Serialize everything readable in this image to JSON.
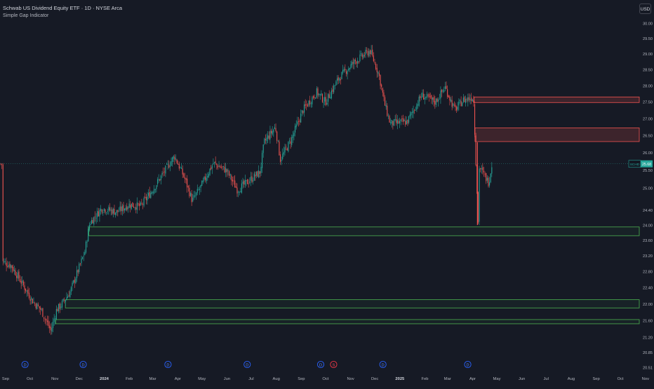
{
  "header": {
    "title": "Schwab US Dividend Equity ETF · 1D · NYSE Arca",
    "indicator": "Simple Gap Indicator",
    "currency": "USD"
  },
  "price_tag": {
    "symbol": "SCHD",
    "value": "25.68"
  },
  "colors": {
    "background": "#161a25",
    "up": "#26a69a",
    "down": "#ef5350",
    "gap_up": "#4caf50",
    "gap_down": "#ef5350",
    "price_line": "#26a69a",
    "text": "#b2b5be"
  },
  "events": {
    "dividend_marker": "D",
    "split_marker": "S"
  },
  "chart_data": {
    "type": "candlestick",
    "title": "Schwab US Dividend Equity ETF · 1D · NYSE Arca",
    "indicator": "Simple Gap Indicator",
    "y_axis": {
      "ticks": [
        "30.00",
        "29.50",
        "29.00",
        "28.50",
        "28.00",
        "27.50",
        "27.00",
        "26.50",
        "26.00",
        "25.50",
        "25.00",
        "24.40",
        "24.00",
        "23.60",
        "23.20",
        "22.80",
        "22.40",
        "22.00",
        "21.60",
        "21.20",
        "20.85",
        "20.51"
      ],
      "range": [
        20.51,
        30.0
      ],
      "scale": "log"
    },
    "x_axis": {
      "ticks": [
        "Sep",
        "Oct",
        "Nov",
        "Dec",
        "2024",
        "Feb",
        "Mar",
        "Apr",
        "May",
        "Jun",
        "Jul",
        "Aug",
        "Sep",
        "Oct",
        "Nov",
        "Dec",
        "2025",
        "Feb",
        "Mar",
        "Apr",
        "May",
        "Jun",
        "Jul",
        "Aug",
        "Sep",
        "Oct",
        "Nov"
      ],
      "bold": [
        "2024",
        "2025"
      ]
    },
    "last_price": 25.68,
    "trend_points": [
      [
        "2023-08-28",
        23.05
      ],
      [
        "2023-09-08",
        22.95
      ],
      [
        "2023-09-20",
        22.55
      ],
      [
        "2023-10-05",
        22.05
      ],
      [
        "2023-10-15",
        21.85
      ],
      [
        "2023-10-27",
        21.35
      ],
      [
        "2023-11-03",
        21.85
      ],
      [
        "2023-11-10",
        22.0
      ],
      [
        "2023-11-20",
        22.3
      ],
      [
        "2023-12-01",
        22.9
      ],
      [
        "2023-12-08",
        23.3
      ],
      [
        "2023-12-14",
        24.05
      ],
      [
        "2023-12-29",
        24.45
      ],
      [
        "2024-01-17",
        24.35
      ],
      [
        "2024-02-01",
        24.55
      ],
      [
        "2024-02-15",
        24.5
      ],
      [
        "2024-03-01",
        24.95
      ],
      [
        "2024-03-15",
        25.45
      ],
      [
        "2024-03-28",
        25.9
      ],
      [
        "2024-04-10",
        25.25
      ],
      [
        "2024-04-19",
        24.65
      ],
      [
        "2024-04-30",
        25.05
      ],
      [
        "2024-05-15",
        25.7
      ],
      [
        "2024-05-31",
        25.5
      ],
      [
        "2024-06-14",
        24.95
      ],
      [
        "2024-06-28",
        25.2
      ],
      [
        "2024-07-12",
        25.45
      ],
      [
        "2024-07-17",
        26.3
      ],
      [
        "2024-07-31",
        26.75
      ],
      [
        "2024-08-06",
        25.8
      ],
      [
        "2024-08-20",
        26.4
      ],
      [
        "2024-09-03",
        27.25
      ],
      [
        "2024-09-20",
        27.8
      ],
      [
        "2024-10-01",
        27.5
      ],
      [
        "2024-10-18",
        28.25
      ],
      [
        "2024-11-06",
        28.75
      ],
      [
        "2024-11-25",
        29.1
      ],
      [
        "2024-12-06",
        28.35
      ],
      [
        "2024-12-13",
        27.45
      ],
      [
        "2024-12-20",
        26.85
      ],
      [
        "2025-01-10",
        26.9
      ],
      [
        "2025-01-28",
        27.7
      ],
      [
        "2025-02-14",
        27.5
      ],
      [
        "2025-02-26",
        27.95
      ],
      [
        "2025-03-10",
        27.25
      ],
      [
        "2025-03-20",
        27.55
      ],
      [
        "2025-04-02",
        27.65
      ],
      [
        "2025-04-04",
        26.4
      ],
      [
        "2025-04-08",
        24.0
      ],
      [
        "2025-04-09",
        25.6
      ],
      [
        "2025-04-21",
        25.15
      ],
      [
        "2025-04-25",
        25.68
      ]
    ],
    "gap_zones": [
      {
        "direction": "down",
        "top": 27.65,
        "bottom": 27.48
      },
      {
        "direction": "down",
        "top": 26.72,
        "bottom": 26.32
      },
      {
        "direction": "up",
        "top": 23.95,
        "bottom": 23.72
      },
      {
        "direction": "up",
        "top": 22.1,
        "bottom": 21.9
      },
      {
        "direction": "up",
        "top": 21.62,
        "bottom": 21.52
      }
    ],
    "events": [
      {
        "date": "2023-09-25",
        "type": "dividend",
        "label": "D"
      },
      {
        "date": "2023-12-06",
        "type": "dividend",
        "label": "D"
      },
      {
        "date": "2024-03-20",
        "type": "dividend",
        "label": "D"
      },
      {
        "date": "2024-06-26",
        "type": "dividend",
        "label": "D"
      },
      {
        "date": "2024-09-25",
        "type": "dividend",
        "label": "D"
      },
      {
        "date": "2024-10-11",
        "type": "split",
        "label": "S"
      },
      {
        "date": "2024-12-11",
        "type": "dividend",
        "label": "D"
      },
      {
        "date": "2025-03-26",
        "type": "dividend",
        "label": "D"
      }
    ]
  }
}
